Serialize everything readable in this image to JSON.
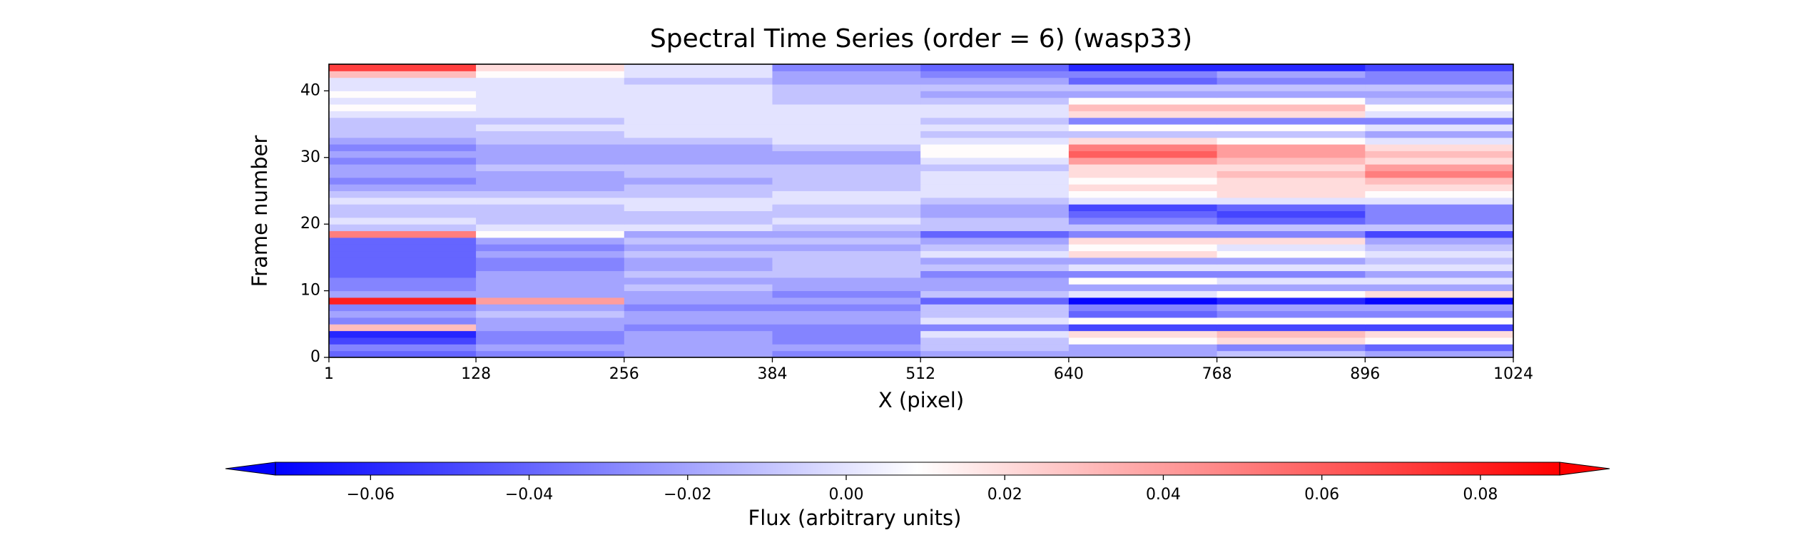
{
  "chart_data": {
    "type": "heatmap",
    "title": "Spectral Time Series (order = 6) (wasp33)",
    "x_label": "X (pixel)",
    "y_label": "Frame number",
    "xlim": [
      1,
      1024
    ],
    "xticks": [
      1,
      128,
      256,
      384,
      512,
      640,
      768,
      896,
      1024
    ],
    "ylim": [
      0,
      44
    ],
    "yticks": [
      0,
      10,
      20,
      30,
      40
    ],
    "x_edges": [
      1,
      128,
      256,
      384,
      512,
      640,
      768,
      896,
      1024
    ],
    "cmap_colors": [
      "#0000ff",
      "#ffffff",
      "#ff0000"
    ],
    "z": [
      [
        -0.04,
        -0.03,
        -0.02,
        -0.03,
        -0.02,
        -0.02,
        -0.01,
        -0.02
      ],
      [
        -0.03,
        -0.02,
        -0.02,
        -0.02,
        -0.01,
        -0.02,
        -0.03,
        -0.04
      ],
      [
        -0.05,
        -0.03,
        -0.02,
        -0.03,
        -0.01,
        0.01,
        0.02,
        0.01
      ],
      [
        -0.06,
        -0.03,
        -0.02,
        -0.03,
        0.0,
        0.02,
        0.03,
        0.02
      ],
      [
        0.03,
        -0.02,
        -0.03,
        -0.03,
        -0.03,
        -0.05,
        -0.05,
        -0.05
      ],
      [
        -0.03,
        -0.02,
        -0.02,
        -0.02,
        0.0,
        0.01,
        0.01,
        0.01
      ],
      [
        -0.02,
        -0.01,
        -0.02,
        -0.02,
        -0.01,
        -0.04,
        -0.03,
        -0.03
      ],
      [
        -0.03,
        -0.02,
        -0.03,
        -0.03,
        -0.01,
        -0.03,
        -0.02,
        -0.02
      ],
      [
        0.08,
        0.04,
        -0.02,
        -0.02,
        -0.04,
        -0.07,
        -0.06,
        -0.07
      ],
      [
        -0.02,
        -0.02,
        -0.02,
        -0.03,
        -0.01,
        0.0,
        0.01,
        0.02
      ],
      [
        -0.03,
        -0.02,
        -0.01,
        -0.02,
        -0.02,
        -0.02,
        -0.02,
        -0.02
      ],
      [
        -0.03,
        -0.02,
        -0.02,
        -0.02,
        -0.02,
        0.01,
        0.0,
        0.0
      ],
      [
        -0.04,
        -0.02,
        -0.01,
        -0.01,
        -0.03,
        -0.03,
        -0.03,
        -0.02
      ],
      [
        -0.04,
        -0.03,
        -0.02,
        -0.01,
        -0.01,
        0.0,
        0.0,
        0.0
      ],
      [
        -0.04,
        -0.03,
        -0.02,
        -0.01,
        -0.02,
        -0.02,
        -0.02,
        -0.01
      ],
      [
        -0.04,
        -0.02,
        -0.01,
        -0.01,
        0.0,
        0.02,
        0.01,
        0.0
      ],
      [
        -0.04,
        -0.03,
        -0.02,
        -0.02,
        -0.01,
        0.01,
        0.0,
        -0.01
      ],
      [
        -0.04,
        -0.02,
        -0.01,
        -0.01,
        -0.02,
        0.02,
        0.02,
        -0.02
      ],
      [
        0.05,
        0.01,
        -0.02,
        -0.02,
        -0.04,
        -0.03,
        -0.03,
        -0.05
      ],
      [
        -0.01,
        0.0,
        0.0,
        -0.01,
        -0.01,
        -0.01,
        -0.01,
        -0.01
      ],
      [
        0.0,
        -0.01,
        -0.01,
        0.0,
        -0.01,
        -0.03,
        -0.04,
        -0.03
      ],
      [
        -0.01,
        -0.01,
        -0.01,
        -0.01,
        -0.02,
        -0.04,
        -0.05,
        -0.03
      ],
      [
        -0.01,
        -0.01,
        0.0,
        -0.01,
        -0.02,
        -0.05,
        -0.04,
        -0.03
      ],
      [
        0.0,
        0.0,
        0.0,
        0.0,
        -0.01,
        0.0,
        0.0,
        0.0
      ],
      [
        -0.01,
        -0.01,
        -0.01,
        0.0,
        0.0,
        0.01,
        0.02,
        0.01
      ],
      [
        -0.02,
        -0.02,
        -0.01,
        -0.01,
        0.0,
        0.02,
        0.02,
        0.02
      ],
      [
        -0.03,
        -0.02,
        -0.02,
        -0.01,
        0.0,
        0.01,
        0.02,
        0.03
      ],
      [
        -0.02,
        -0.02,
        -0.01,
        -0.01,
        0.0,
        0.02,
        0.03,
        0.05
      ],
      [
        -0.02,
        -0.01,
        -0.01,
        -0.01,
        -0.01,
        0.02,
        0.02,
        0.04
      ],
      [
        -0.03,
        -0.02,
        -0.02,
        -0.02,
        0.0,
        0.04,
        0.03,
        0.02
      ],
      [
        -0.02,
        -0.02,
        -0.02,
        -0.02,
        0.01,
        0.06,
        0.04,
        0.03
      ],
      [
        -0.03,
        -0.02,
        -0.02,
        -0.01,
        0.01,
        0.05,
        0.04,
        0.02
      ],
      [
        -0.02,
        -0.01,
        -0.01,
        0.0,
        0.0,
        0.02,
        0.01,
        0.0
      ],
      [
        -0.01,
        -0.01,
        0.0,
        0.0,
        -0.01,
        -0.01,
        -0.01,
        -0.02
      ],
      [
        -0.01,
        0.0,
        0.0,
        0.0,
        0.0,
        0.01,
        0.01,
        0.0
      ],
      [
        -0.01,
        -0.01,
        0.0,
        0.0,
        -0.01,
        -0.03,
        -0.03,
        -0.03
      ],
      [
        0.0,
        0.0,
        0.0,
        0.0,
        0.0,
        0.02,
        0.02,
        0.0
      ],
      [
        0.01,
        0.0,
        0.0,
        0.0,
        0.0,
        0.03,
        0.03,
        0.01
      ],
      [
        0.0,
        0.0,
        0.0,
        -0.01,
        -0.01,
        0.01,
        0.01,
        -0.01
      ],
      [
        0.01,
        0.0,
        0.0,
        -0.01,
        -0.02,
        -0.02,
        -0.02,
        -0.02
      ],
      [
        0.0,
        0.0,
        0.0,
        -0.01,
        -0.01,
        -0.01,
        -0.01,
        -0.01
      ],
      [
        0.0,
        0.0,
        -0.01,
        -0.02,
        -0.02,
        -0.04,
        -0.03,
        -0.03
      ],
      [
        0.03,
        0.01,
        0.0,
        -0.02,
        -0.03,
        -0.03,
        -0.02,
        -0.03
      ],
      [
        0.07,
        0.02,
        0.0,
        -0.03,
        -0.04,
        -0.06,
        -0.06,
        -0.05
      ]
    ],
    "colorbar": {
      "label": "Flux (arbitrary units)",
      "lim": [
        -0.072,
        0.09
      ],
      "extend": "both",
      "ticks": [
        {
          "value": -0.06,
          "label": "−0.06"
        },
        {
          "value": -0.04,
          "label": "−0.04"
        },
        {
          "value": -0.02,
          "label": "−0.02"
        },
        {
          "value": 0,
          "label": "0.00"
        },
        0.02,
        0.04,
        0.06,
        0.08
      ]
    }
  }
}
